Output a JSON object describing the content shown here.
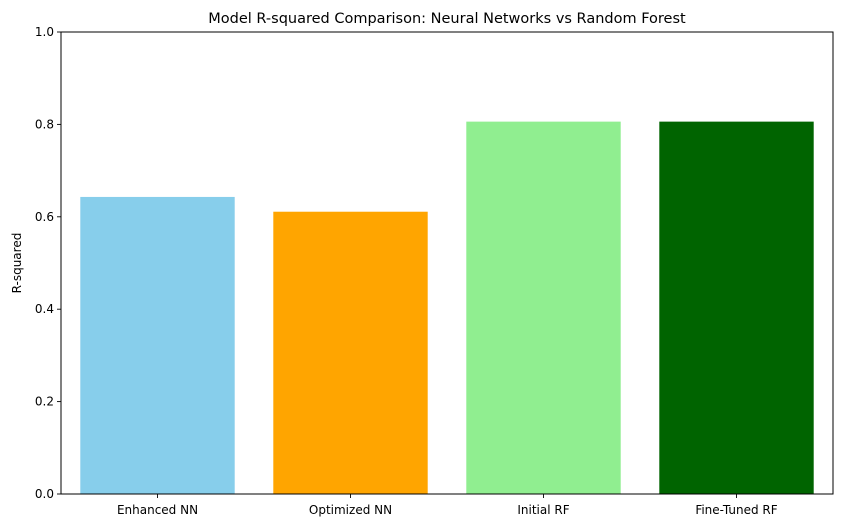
{
  "chart_data": {
    "type": "bar",
    "title": "Model R-squared Comparison: Neural Networks vs Random Forest",
    "xlabel": "",
    "ylabel": "R-squared",
    "categories": [
      "Enhanced NN",
      "Optimized NN",
      "Initial RF",
      "Fine-Tuned RF"
    ],
    "values": [
      0.643,
      0.611,
      0.806,
      0.806
    ],
    "colors": [
      "#87CEEB",
      "#FFA500",
      "#90EE90",
      "#006400"
    ],
    "ylim": [
      0,
      1
    ],
    "yticks": [
      0.0,
      0.2,
      0.4,
      0.6,
      0.8,
      1.0
    ],
    "ytick_labels": [
      "0.0",
      "0.2",
      "0.4",
      "0.6",
      "0.8",
      "1.0"
    ],
    "grid": false,
    "legend": "none"
  }
}
